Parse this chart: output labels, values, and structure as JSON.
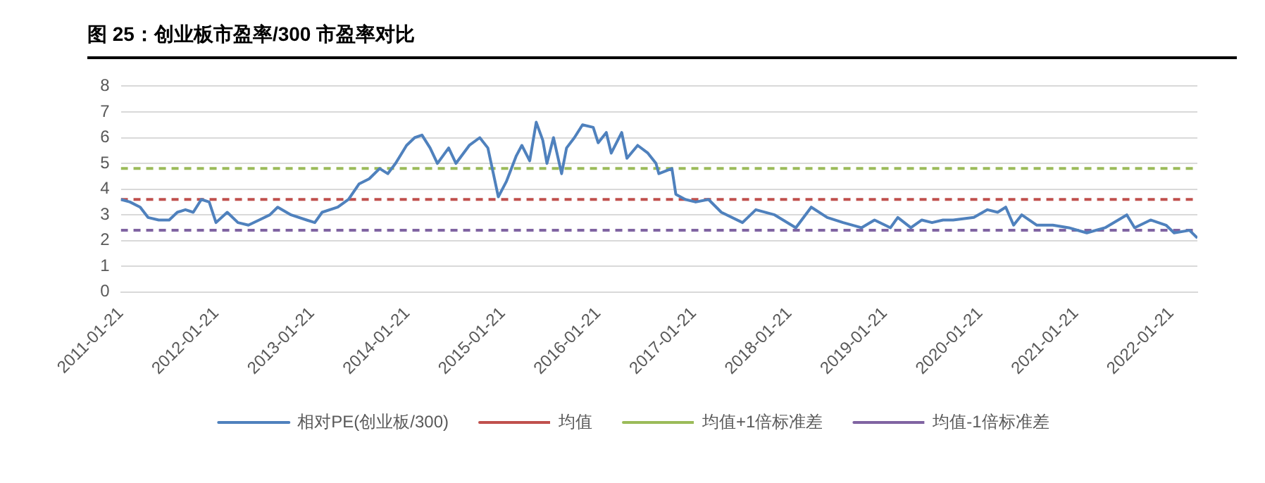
{
  "chart_data": {
    "type": "line",
    "title": "图 25：创业板市盈率/300 市盈率对比",
    "xlim": [
      "2011-01-21",
      "2022-05-01"
    ],
    "xticks": [
      "2011-01-21",
      "2012-01-21",
      "2013-01-21",
      "2014-01-21",
      "2015-01-21",
      "2016-01-21",
      "2017-01-21",
      "2018-01-21",
      "2019-01-21",
      "2020-01-21",
      "2021-01-21",
      "2022-01-21"
    ],
    "ylim": [
      0,
      8
    ],
    "yticks": [
      0,
      1,
      2,
      3,
      4,
      5,
      6,
      7,
      8
    ],
    "grid": "y",
    "legend": "bottom",
    "marker": "none",
    "series": [
      {
        "name": "相对PE(创业板/300)",
        "color": "#4f81bd",
        "line_style": "solid",
        "x": [
          "2011-01-21",
          "2011-02-25",
          "2011-04-05",
          "2011-05-05",
          "2011-06-15",
          "2011-07-25",
          "2011-08-25",
          "2011-09-25",
          "2011-10-25",
          "2011-11-25",
          "2011-12-25",
          "2012-01-20",
          "2012-03-03",
          "2012-04-13",
          "2012-05-23",
          "2012-07-03",
          "2012-08-13",
          "2012-09-12",
          "2012-11-02",
          "2013-01-01",
          "2013-02-01",
          "2013-03-01",
          "2013-04-30",
          "2013-06-10",
          "2013-07-20",
          "2013-08-28",
          "2013-10-07",
          "2013-11-07",
          "2013-12-07",
          "2014-01-18",
          "2014-02-18",
          "2014-03-18",
          "2014-04-18",
          "2014-05-16",
          "2014-06-28",
          "2014-07-26",
          "2014-09-15",
          "2014-10-25",
          "2014-11-25",
          "2015-01-04",
          "2015-02-04",
          "2015-03-14",
          "2015-04-04",
          "2015-05-04",
          "2015-05-29",
          "2015-06-23",
          "2015-07-09",
          "2015-08-03",
          "2015-09-03",
          "2015-09-22",
          "2015-10-22",
          "2015-11-22",
          "2016-01-02",
          "2016-01-21",
          "2016-02-21",
          "2016-03-11",
          "2016-04-20",
          "2016-05-10",
          "2016-06-20",
          "2016-07-29",
          "2016-08-29",
          "2016-09-09",
          "2016-10-29",
          "2016-11-13",
          "2016-12-19",
          "2017-01-28",
          "2017-03-18",
          "2017-05-06",
          "2017-07-26",
          "2017-09-15",
          "2017-11-26",
          "2018-02-15",
          "2018-04-15",
          "2018-06-15",
          "2018-08-15",
          "2018-10-24",
          "2018-12-13",
          "2019-02-12",
          "2019-03-12",
          "2019-05-01",
          "2019-06-12",
          "2019-07-21",
          "2019-09-01",
          "2019-10-10",
          "2019-12-28",
          "2020-02-18",
          "2020-03-28",
          "2020-04-28",
          "2020-05-28",
          "2020-06-28",
          "2020-08-25",
          "2020-10-25",
          "2020-12-25",
          "2021-03-04",
          "2021-05-13",
          "2021-08-04",
          "2021-09-03",
          "2021-11-03",
          "2022-01-01",
          "2022-02-01",
          "2022-04-01",
          "2022-05-01"
        ],
        "values": [
          3.6,
          3.5,
          3.3,
          2.9,
          2.8,
          2.8,
          3.1,
          3.2,
          3.1,
          3.6,
          3.5,
          2.7,
          3.1,
          2.7,
          2.6,
          2.8,
          3.0,
          3.3,
          3.0,
          2.8,
          2.7,
          3.1,
          3.3,
          3.6,
          4.2,
          4.4,
          4.8,
          4.6,
          5.0,
          5.7,
          6.0,
          6.1,
          5.6,
          5.0,
          5.6,
          5.0,
          5.7,
          6.0,
          5.6,
          3.7,
          4.3,
          5.3,
          5.7,
          5.1,
          6.6,
          5.9,
          5.0,
          6.0,
          4.6,
          5.6,
          6.0,
          6.5,
          6.4,
          5.8,
          6.2,
          5.4,
          6.2,
          5.2,
          5.7,
          5.4,
          5.0,
          4.6,
          4.8,
          3.8,
          3.6,
          3.5,
          3.6,
          3.1,
          2.7,
          3.2,
          3.0,
          2.5,
          3.3,
          2.9,
          2.7,
          2.5,
          2.8,
          2.5,
          2.9,
          2.5,
          2.8,
          2.7,
          2.8,
          2.8,
          2.9,
          3.2,
          3.1,
          3.3,
          2.6,
          3.0,
          2.6,
          2.6,
          2.5,
          2.3,
          2.5,
          3.0,
          2.5,
          2.8,
          2.6,
          2.3,
          2.4,
          2.1
        ]
      },
      {
        "name": "均值",
        "color": "#c0504d",
        "line_style": "dashed",
        "x": [
          "2011-01-21",
          "2022-05-01"
        ],
        "values": [
          3.6,
          3.6
        ]
      },
      {
        "name": "均值+1倍标准差",
        "color": "#9bbb59",
        "line_style": "dashed",
        "x": [
          "2011-01-21",
          "2022-05-01"
        ],
        "values": [
          4.8,
          4.8
        ]
      },
      {
        "name": "均值-1倍标准差",
        "color": "#8064a2",
        "line_style": "dashed",
        "x": [
          "2011-01-21",
          "2022-05-01"
        ],
        "values": [
          2.4,
          2.4
        ]
      }
    ]
  }
}
